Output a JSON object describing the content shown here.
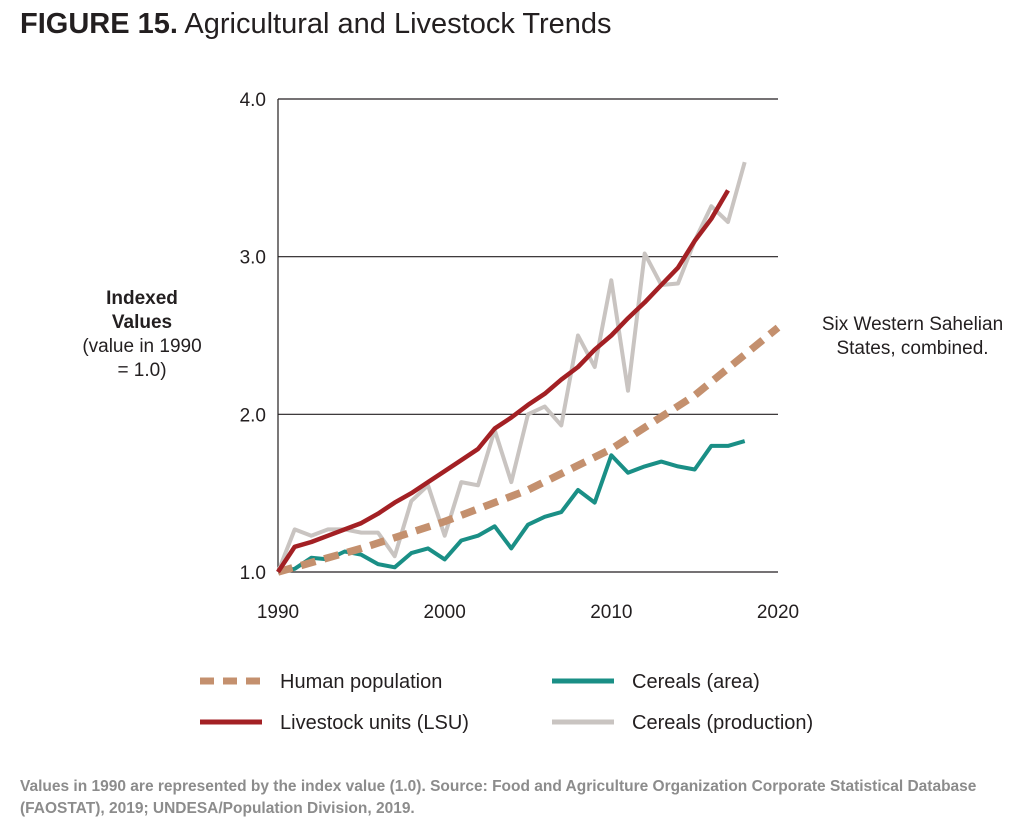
{
  "figure": {
    "number": "FIGURE 15.",
    "title": "Agricultural and Livestock Trends"
  },
  "ylabel": {
    "bold": "Indexed Values",
    "normal": "(value in 1990 = 1.0)"
  },
  "annotation": "Six Western Sahelian States, combined.",
  "source": "Values in 1990 are represented by the index value (1.0). Source: Food and Agriculture Organization Corporate Statistical Database (FAOSTAT), 2019; UNDESA/Population Division, 2019.",
  "colors": {
    "population": "#c4906e",
    "livestock": "#a32024",
    "cereals_area": "#1a8f86",
    "cereals_production": "#c9c4c1"
  },
  "chart_data": {
    "type": "line",
    "xlim": [
      1990,
      2020
    ],
    "ylim": [
      1.0,
      4.0
    ],
    "xticks": [
      "1990",
      "2000",
      "2010",
      "2020"
    ],
    "yticks": [
      "1.0",
      "2.0",
      "3.0",
      "4.0"
    ],
    "grid": "horizontal",
    "legend_position": "bottom",
    "series": [
      {
        "key": "cereals_production",
        "name": "Cereals (production)",
        "style": "solid",
        "x": [
          1990,
          1991,
          1992,
          1993,
          1994,
          1995,
          1996,
          1997,
          1998,
          1999,
          2000,
          2001,
          2002,
          2003,
          2004,
          2005,
          2006,
          2007,
          2008,
          2009,
          2010,
          2011,
          2012,
          2013,
          2014,
          2015,
          2016,
          2017,
          2018
        ],
        "y": [
          1.0,
          1.27,
          1.23,
          1.27,
          1.27,
          1.25,
          1.25,
          1.1,
          1.45,
          1.55,
          1.23,
          1.57,
          1.55,
          1.9,
          1.57,
          2.0,
          2.05,
          1.93,
          2.5,
          2.3,
          2.85,
          2.15,
          3.02,
          2.82,
          2.83,
          3.1,
          3.32,
          3.22,
          3.6
        ]
      },
      {
        "key": "cereals_area",
        "name": "Cereals (area)",
        "style": "solid",
        "x": [
          1990,
          1991,
          1992,
          1993,
          1994,
          1995,
          1996,
          1997,
          1998,
          1999,
          2000,
          2001,
          2002,
          2003,
          2004,
          2005,
          2006,
          2007,
          2008,
          2009,
          2010,
          2011,
          2012,
          2013,
          2014,
          2015,
          2016,
          2017,
          2018
        ],
        "y": [
          1.0,
          1.02,
          1.09,
          1.08,
          1.13,
          1.11,
          1.05,
          1.03,
          1.12,
          1.15,
          1.08,
          1.2,
          1.23,
          1.29,
          1.15,
          1.3,
          1.35,
          1.38,
          1.52,
          1.44,
          1.74,
          1.63,
          1.67,
          1.7,
          1.67,
          1.65,
          1.8,
          1.8,
          1.83
        ]
      },
      {
        "key": "population",
        "name": "Human population",
        "style": "dashed",
        "x": [
          1990,
          1995,
          2000,
          2005,
          2010,
          2015,
          2020
        ],
        "y": [
          1.0,
          1.15,
          1.32,
          1.52,
          1.78,
          2.12,
          2.55
        ]
      },
      {
        "key": "livestock",
        "name": "Livestock units (LSU)",
        "style": "solid",
        "x": [
          1990,
          1991,
          1992,
          1993,
          1994,
          1995,
          1996,
          1997,
          1998,
          1999,
          2000,
          2001,
          2002,
          2003,
          2004,
          2005,
          2006,
          2007,
          2008,
          2009,
          2010,
          2011,
          2012,
          2013,
          2014,
          2015,
          2016,
          2017
        ],
        "y": [
          1.0,
          1.16,
          1.19,
          1.23,
          1.27,
          1.31,
          1.37,
          1.44,
          1.5,
          1.57,
          1.64,
          1.71,
          1.78,
          1.91,
          1.98,
          2.06,
          2.13,
          2.22,
          2.3,
          2.41,
          2.5,
          2.61,
          2.71,
          2.82,
          2.93,
          3.1,
          3.24,
          3.42
        ]
      }
    ],
    "legend": [
      {
        "key": "population",
        "name": "Human population"
      },
      {
        "key": "cereals_area",
        "name": "Cereals (area)"
      },
      {
        "key": "livestock",
        "name": "Livestock units (LSU)"
      },
      {
        "key": "cereals_production",
        "name": "Cereals (production)"
      }
    ]
  }
}
